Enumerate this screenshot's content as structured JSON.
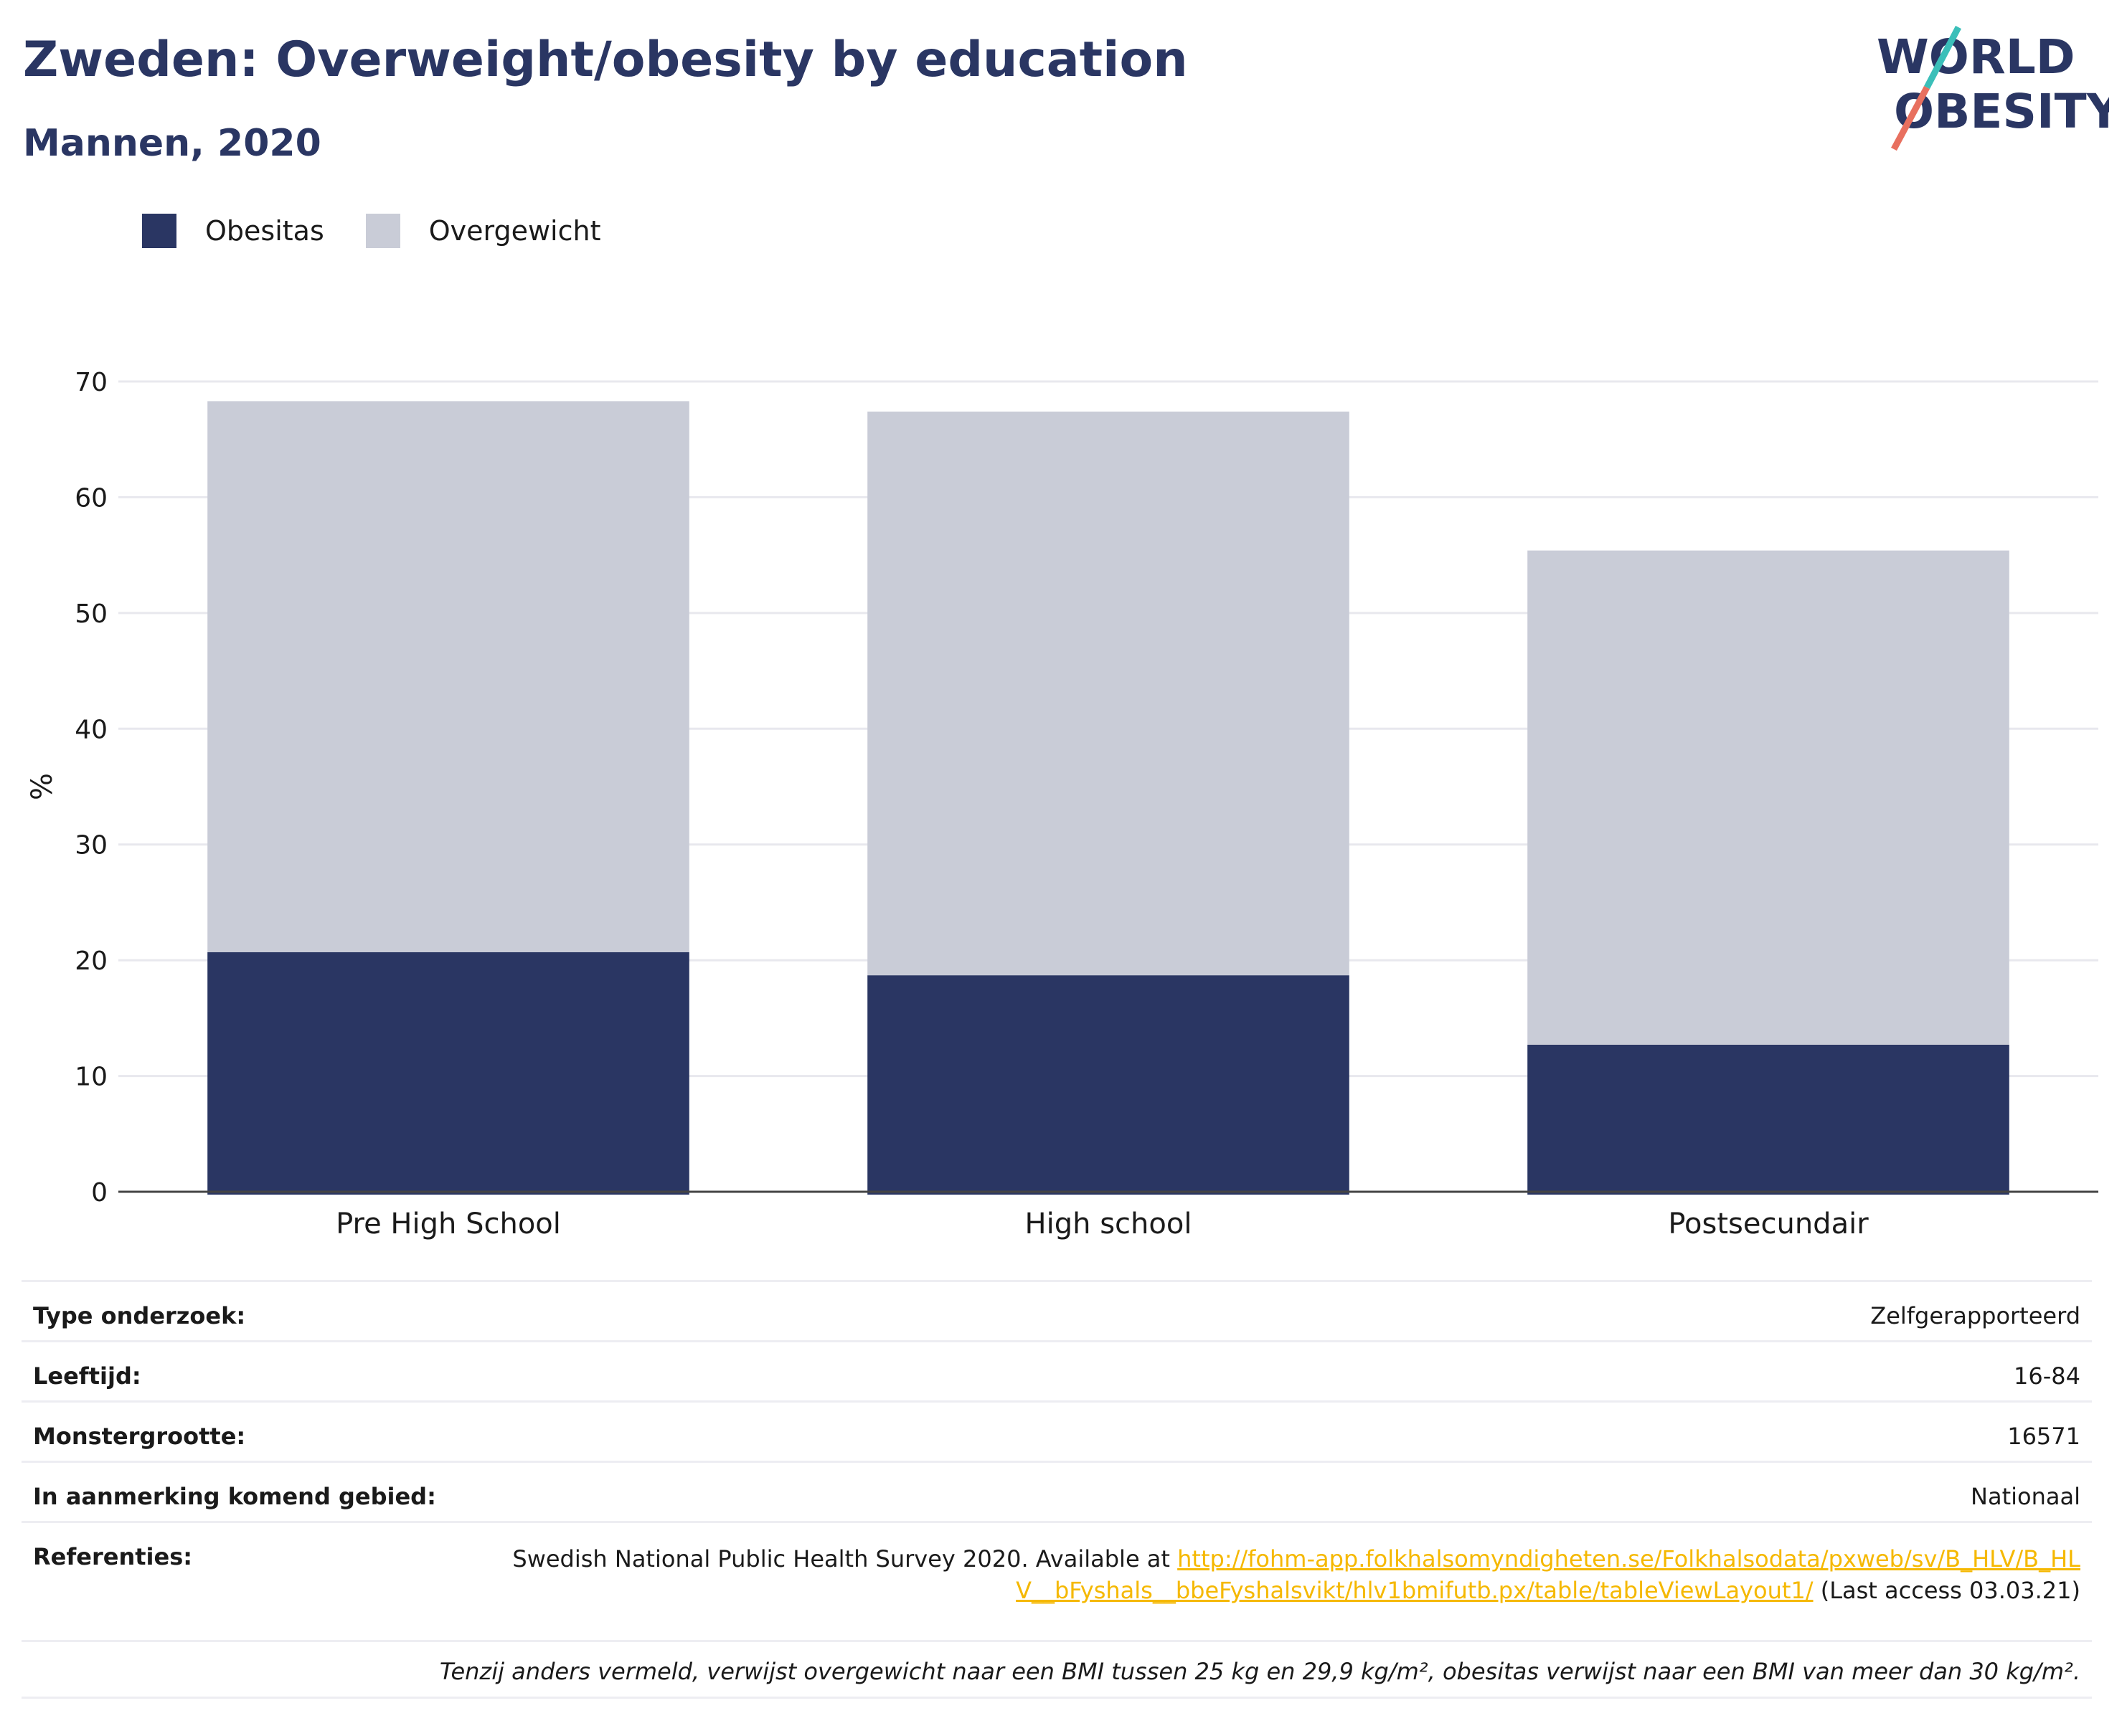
{
  "header": {
    "title": "Zweden: Overweight/obesity by education",
    "subtitle": "Mannen, 2020"
  },
  "logo": {
    "line1": "WORLD",
    "line2": "OBESITY"
  },
  "colors": {
    "obesitas": "#2a3663",
    "overgewicht": "#c9ccd7",
    "accent_teal": "#3bbfb9",
    "accent_red": "#e8705f",
    "link": "#f5b800"
  },
  "chart_data": {
    "type": "bar",
    "stacked": true,
    "categories": [
      "Pre High School",
      "High school",
      "Postsecundair"
    ],
    "series": [
      {
        "name": "Obesitas",
        "values": [
          20.7,
          18.7,
          12.7
        ]
      },
      {
        "name": "Overgewicht",
        "values": [
          47.6,
          48.7,
          42.7
        ]
      }
    ],
    "ylabel": "%",
    "ylim": [
      0,
      70
    ],
    "yticks": [
      "0",
      "10",
      "20",
      "30",
      "40",
      "50",
      "60",
      "70"
    ],
    "grid": true,
    "legend": "top-left"
  },
  "info": {
    "rows": [
      {
        "label": "Type onderzoek:",
        "value": "Zelfgerapporteerd"
      },
      {
        "label": "Leeftijd:",
        "value": "16-84"
      },
      {
        "label": "Monstergrootte:",
        "value": "16571"
      },
      {
        "label": "In aanmerking komend gebied:",
        "value": "Nationaal"
      }
    ],
    "references": {
      "label": "Referenties:",
      "text_before": "Swedish National Public Health Survey 2020. Available at ",
      "link": "http://fohm-app.folkhalsomyndigheten.se/Folkhalsodata/pxweb/sv/B_HLV/B_HLV__bFyshals__bbeFyshalsvikt/hlv1bmifutb.px/table/tableViewLayout1/",
      "text_after": " (Last access 03.03.21)"
    },
    "note": "Tenzij anders vermeld, verwijst overgewicht naar een BMI tussen 25 kg en 29,9 kg/m², obesitas verwijst naar een BMI van meer dan 30 kg/m²."
  }
}
